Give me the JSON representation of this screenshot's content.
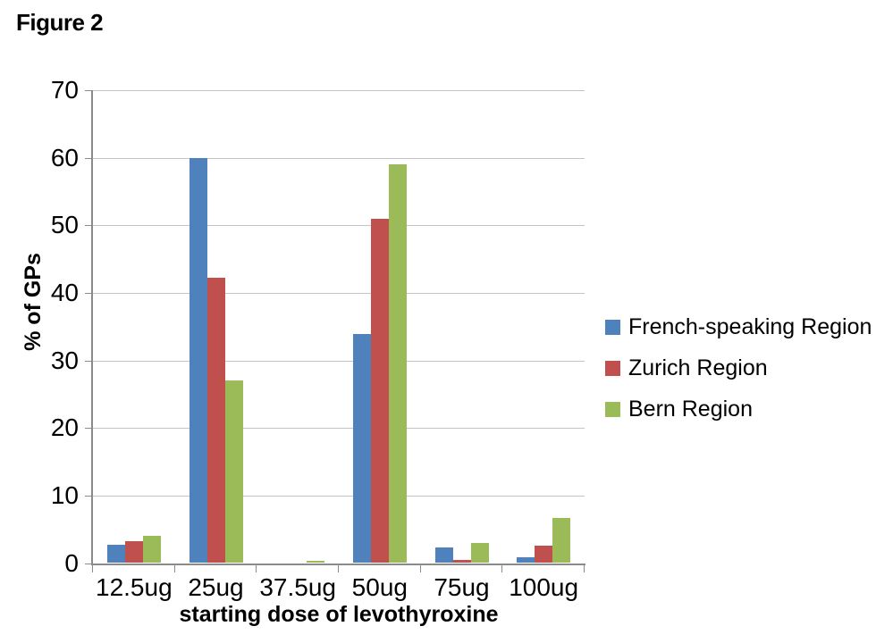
{
  "figure_label": "Figure 2",
  "chart_data": {
    "type": "bar",
    "title": "Figure 2",
    "categories": [
      "12.5ug",
      "25ug",
      "37.5ug",
      "50ug",
      "75ug",
      "100ug"
    ],
    "series": [
      {
        "name": "French-speaking Region",
        "color": "#4F81BD",
        "values": [
          2.7,
          60,
          0,
          33.9,
          2.3,
          0.9
        ]
      },
      {
        "name": "Zurich Region",
        "color": "#C0504D",
        "values": [
          3.3,
          42.3,
          0,
          51,
          0.5,
          2.6
        ]
      },
      {
        "name": "Bern Region",
        "color": "#9BBB59",
        "values": [
          4,
          27,
          0.3,
          59,
          3,
          6.7
        ]
      }
    ],
    "xlabel": "starting dose of levothyroxine",
    "ylabel": "% of GPs",
    "ylim": [
      0,
      70
    ],
    "y_ticks": [
      0,
      10,
      20,
      30,
      40,
      50,
      60,
      70
    ],
    "grid": true,
    "legend_position": "right"
  },
  "colors": {
    "gridline": "#c4c4c4",
    "axis": "#8a8a8a",
    "text": "#000000",
    "background": "#ffffff"
  }
}
